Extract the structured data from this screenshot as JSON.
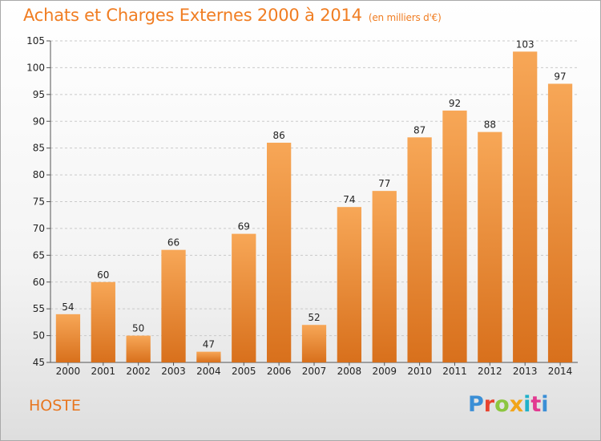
{
  "title": "Achats et Charges Externes 2000 à 2014",
  "subtitle": "(en milliers d'€)",
  "commune": "HOSTE",
  "brand": "Proxiti",
  "colors": {
    "accent": "#f07d22",
    "bar_top": "#f7a757",
    "bar_bottom": "#d8701c",
    "brand_letters": [
      "#3b8fd6",
      "#e8432f",
      "#8cc63f",
      "#f2a51a",
      "#1fb1c9",
      "#e23a91"
    ]
  },
  "chart_data": {
    "type": "bar",
    "categories": [
      "2000",
      "2001",
      "2002",
      "2003",
      "2004",
      "2005",
      "2006",
      "2007",
      "2008",
      "2009",
      "2010",
      "2011",
      "2012",
      "2013",
      "2014"
    ],
    "values": [
      54,
      60,
      50,
      66,
      47,
      69,
      86,
      52,
      74,
      77,
      87,
      92,
      88,
      103,
      97
    ],
    "title": "Achats et Charges Externes 2000 à 2014",
    "subtitle": "(en milliers d'€)",
    "xlabel": "",
    "ylabel": "",
    "ylim": [
      45,
      105
    ],
    "yticks": [
      45,
      50,
      55,
      60,
      65,
      70,
      75,
      80,
      85,
      90,
      95,
      100,
      105
    ],
    "grid": true,
    "legend": "none",
    "data_labels": true
  }
}
